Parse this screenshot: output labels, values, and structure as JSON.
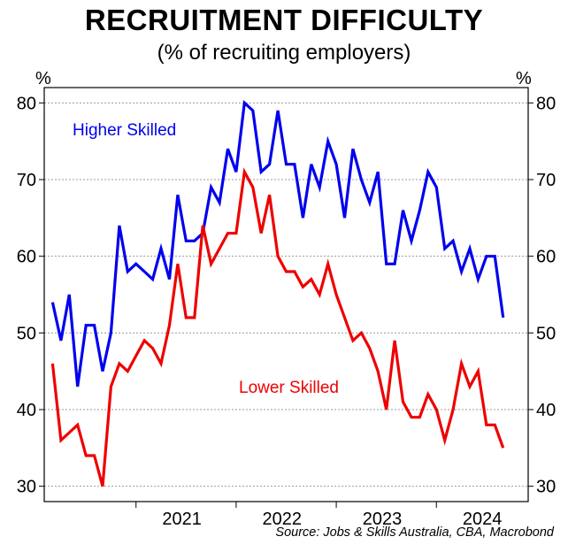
{
  "title": "RECRUITMENT DIFFICULTY",
  "subtitle": "(% of recruiting employers)",
  "unit_left": "%",
  "unit_right": "%",
  "source": "Source: Jobs & Skills Australia, CBA, Macrobond",
  "chart_data": {
    "type": "line",
    "x_start": "2020-03",
    "x_freq": "monthly",
    "xlim": [
      "2020-02",
      "2024-12"
    ],
    "ylim": [
      28,
      82
    ],
    "y_ticks": [
      30,
      40,
      50,
      60,
      70,
      80
    ],
    "x_ticks": [
      "2021",
      "2022",
      "2023",
      "2024"
    ],
    "grid": true,
    "colors": {
      "higher": "#0000ee",
      "lower": "#ee0000"
    },
    "series": [
      {
        "name": "Higher Skilled",
        "color": "#0000ee",
        "values": [
          54,
          49,
          55,
          43,
          51,
          51,
          45,
          50,
          64,
          58,
          59,
          58,
          57,
          61,
          57,
          68,
          62,
          62,
          63,
          69,
          67,
          74,
          71,
          80,
          79,
          71,
          72,
          79,
          72,
          72,
          65,
          72,
          69,
          75,
          72,
          65,
          74,
          70,
          67,
          71,
          59,
          59,
          66,
          62,
          66,
          71,
          69,
          61,
          62,
          58,
          61,
          57,
          60,
          60,
          52
        ]
      },
      {
        "name": "Lower Skilled",
        "color": "#ee0000",
        "values": [
          46,
          36,
          37,
          38,
          34,
          34,
          30,
          43,
          46,
          45,
          47,
          49,
          48,
          46,
          51,
          59,
          52,
          52,
          64,
          59,
          61,
          63,
          63,
          71,
          69,
          63,
          68,
          60,
          58,
          58,
          56,
          57,
          55,
          59,
          55,
          52,
          49,
          50,
          48,
          45,
          40,
          49,
          41,
          39,
          39,
          42,
          40,
          36,
          40,
          46,
          43,
          45,
          38,
          38,
          35
        ]
      }
    ]
  }
}
